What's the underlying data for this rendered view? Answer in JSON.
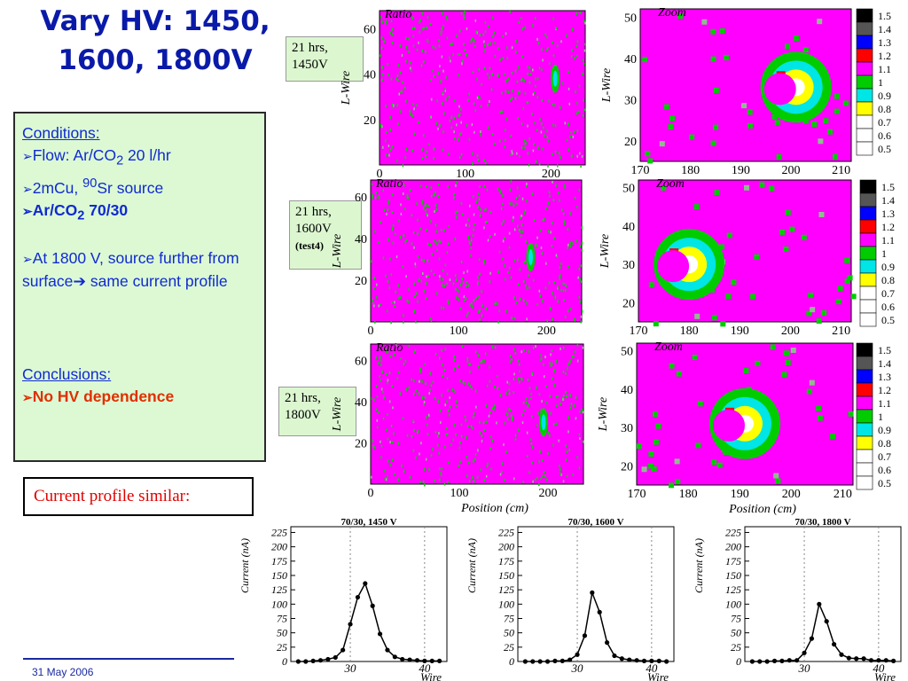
{
  "title": "Vary HV: 1450, 1600, 1800V",
  "notes": [
    {
      "line1": "21 hrs,",
      "line2": "1450V",
      "line3": ""
    },
    {
      "line1": "21 hrs,",
      "line2": "1600V",
      "line3": "(test4)"
    },
    {
      "line1": "21 hrs,",
      "line2": "1800V",
      "line3": ""
    }
  ],
  "conditions": {
    "heading": "Conditions:",
    "flow_a": "Flow: Ar/CO",
    "flow_sub": "2",
    "flow_b": " 20 l/hr",
    "source_a": "2mCu, ",
    "source_sup": "90",
    "source_b": "Sr source",
    "mix_a": "Ar/CO",
    "mix_sub": "2",
    "mix_b": " 70/30",
    "hv_a": "At 1800 V, source further from surface",
    "hv_b": " same current profile",
    "concl_heading": "Conclusions:",
    "concl": "No HV dependence"
  },
  "similar": "Current profile similar:",
  "date": "31 May 2006",
  "colors": {
    "accent": "#0a1aa8",
    "magenta": "#ff00ff",
    "green": "#00cc00",
    "cyan": "#00e5e5",
    "yellow": "#ffff00",
    "red": "#ff0000"
  },
  "colorbar_labels": [
    "1.5",
    "1.4",
    "1.3",
    "1.2",
    "1.1",
    "1",
    "0.9",
    "0.8",
    "0.7",
    "0.6",
    "0.5"
  ],
  "chart_data": [
    {
      "type": "heatmap",
      "title": "Ratio",
      "ylabel": "L-Wire",
      "xticks": [
        0,
        100,
        200
      ],
      "yticks": [
        20,
        40,
        60
      ],
      "hotspot": {
        "x": 205,
        "y": 38
      }
    },
    {
      "type": "heatmap",
      "title": "Zoom",
      "ylabel": "L-Wire",
      "xticks": [
        170,
        180,
        190,
        200,
        210
      ],
      "yticks": [
        20,
        30,
        40,
        50
      ],
      "hotspot": {
        "x": 201,
        "y": 33
      }
    },
    {
      "type": "heatmap",
      "title": "Ratio",
      "ylabel": "L-Wire",
      "xticks": [
        0,
        100,
        200
      ],
      "yticks": [
        20,
        40,
        60
      ],
      "hotspot": {
        "x": 182,
        "y": 31
      }
    },
    {
      "type": "heatmap",
      "title": "Zoom",
      "ylabel": "L-Wire",
      "xticks": [
        170,
        180,
        190,
        200,
        210
      ],
      "yticks": [
        20,
        30,
        40,
        50
      ],
      "hotspot": {
        "x": 180,
        "y": 30
      }
    },
    {
      "type": "heatmap",
      "title": "Ratio",
      "ylabel": "L-Wire",
      "xlabel": "Position (cm)",
      "xticks": [
        0,
        100,
        200
      ],
      "yticks": [
        20,
        40,
        60
      ],
      "hotspot": {
        "x": 195,
        "y": 30
      }
    },
    {
      "type": "heatmap",
      "title": "Zoom",
      "ylabel": "L-Wire",
      "xlabel": "Position (cm)",
      "xticks": [
        170,
        180,
        190,
        200,
        210
      ],
      "yticks": [
        20,
        30,
        40,
        50
      ],
      "hotspot": {
        "x": 191,
        "y": 31
      }
    },
    {
      "type": "line",
      "title": "70/30, 1450 V",
      "xlabel": "Wire",
      "ylabel": "Current (nA)",
      "ylim": [
        0,
        235
      ],
      "xlim": [
        22,
        43
      ],
      "yticks": [
        0,
        25,
        50,
        75,
        100,
        125,
        150,
        175,
        200,
        225
      ],
      "xticks": [
        30,
        40
      ],
      "x": [
        23,
        24,
        25,
        26,
        27,
        28,
        29,
        30,
        31,
        32,
        33,
        34,
        35,
        36,
        37,
        38,
        39,
        40,
        41,
        42
      ],
      "y": [
        0,
        0,
        1,
        2,
        4,
        7,
        20,
        65,
        112,
        136,
        97,
        48,
        20,
        8,
        4,
        3,
        2,
        1,
        1,
        1
      ]
    },
    {
      "type": "line",
      "title": "70/30, 1600 V",
      "xlabel": "Wire",
      "ylabel": "Current (nA)",
      "ylim": [
        0,
        235
      ],
      "xlim": [
        22,
        43
      ],
      "yticks": [
        0,
        25,
        50,
        75,
        100,
        125,
        150,
        175,
        200,
        225
      ],
      "xticks": [
        30,
        40
      ],
      "x": [
        23,
        24,
        25,
        26,
        27,
        28,
        29,
        30,
        31,
        32,
        33,
        34,
        35,
        36,
        37,
        38,
        39,
        40,
        41,
        42
      ],
      "y": [
        0,
        0,
        0,
        0,
        1,
        1,
        3,
        12,
        45,
        120,
        86,
        33,
        10,
        5,
        3,
        2,
        1,
        1,
        1,
        0
      ]
    },
    {
      "type": "line",
      "title": "70/30, 1800 V",
      "xlabel": "Wire",
      "ylabel": "Current (nA)",
      "ylim": [
        0,
        235
      ],
      "xlim": [
        22,
        43
      ],
      "yticks": [
        0,
        25,
        50,
        75,
        100,
        125,
        150,
        175,
        200,
        225
      ],
      "xticks": [
        30,
        40
      ],
      "x": [
        23,
        24,
        25,
        26,
        27,
        28,
        29,
        30,
        31,
        32,
        33,
        34,
        35,
        36,
        37,
        38,
        39,
        40,
        41,
        42
      ],
      "y": [
        0,
        0,
        0,
        1,
        1,
        2,
        2,
        15,
        40,
        100,
        70,
        30,
        12,
        6,
        5,
        5,
        2,
        2,
        2,
        1
      ]
    }
  ]
}
